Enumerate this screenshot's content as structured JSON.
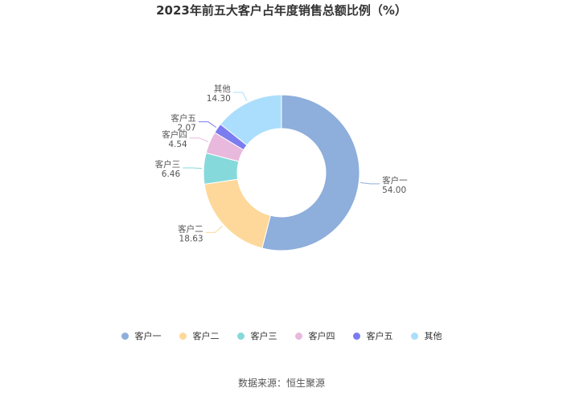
{
  "chart_data": {
    "type": "pie",
    "title": "2023年前五大客户占年度销售总额比例（%）",
    "categories": [
      "客户一",
      "客户二",
      "客户三",
      "客户四",
      "客户五",
      "其他"
    ],
    "values": [
      54.0,
      18.63,
      6.46,
      4.54,
      2.07,
      14.3
    ],
    "value_labels": [
      "54.00",
      "18.63",
      "6.46",
      "4.54",
      "2.07",
      "14.30"
    ],
    "colors": [
      "#8eaedb",
      "#fdd89a",
      "#86d9da",
      "#e8b9dc",
      "#7b7cef",
      "#abdefc"
    ],
    "legend_position": "bottom",
    "donut": true
  },
  "source": "数据来源：恒生聚源"
}
